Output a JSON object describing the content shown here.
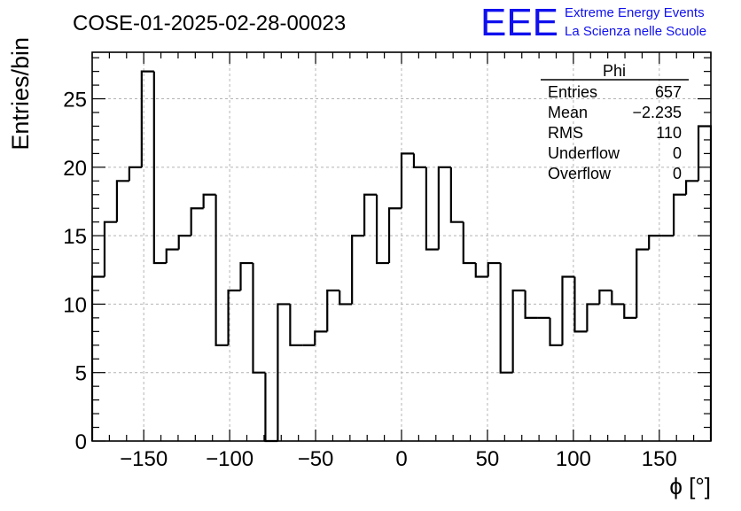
{
  "header": {
    "run_title": "COSE-01-2025-02-28-00023",
    "logo_text": "EEE",
    "logo_line1": "Extreme Energy Events",
    "logo_line2": "La Scienza nelle Scuole",
    "logo_color": "#1010ee"
  },
  "stats_box": {
    "title": "Phi",
    "rows": [
      {
        "label": "Entries",
        "value": "657"
      },
      {
        "label": "Mean",
        "value": "−2.235"
      },
      {
        "label": "RMS",
        "value": "110"
      },
      {
        "label": "Underflow",
        "value": "0"
      },
      {
        "label": "Overflow",
        "value": "0"
      }
    ]
  },
  "chart_data": {
    "type": "histogram",
    "title": "COSE-01-2025-02-28-00023",
    "xlabel": "ϕ [°]",
    "ylabel": "Entries/bin",
    "xlim": [
      -180,
      180
    ],
    "ylim": [
      0,
      28.4
    ],
    "grid": true,
    "bin_width": 7.2,
    "x_ticks": [
      -150,
      -100,
      -50,
      0,
      50,
      100,
      150
    ],
    "x_tick_labels": [
      "−150",
      "−100",
      "−50",
      "0",
      "50",
      "100",
      "150"
    ],
    "y_ticks": [
      0,
      5,
      10,
      15,
      20,
      25
    ],
    "y_tick_labels": [
      "0",
      "5",
      "10",
      "15",
      "20",
      "25"
    ],
    "values": [
      12,
      16,
      19,
      20,
      27,
      13,
      14,
      15,
      17,
      18,
      7,
      11,
      13,
      5,
      0,
      10,
      7,
      7,
      8,
      11,
      10,
      15,
      18,
      13,
      17,
      21,
      20,
      14,
      20,
      16,
      13,
      12,
      13,
      5,
      11,
      9,
      9,
      7,
      12,
      8,
      10,
      11,
      10,
      9,
      14,
      15,
      15,
      18,
      19,
      23
    ],
    "line_color": "#000000",
    "grid_color": "#b4b4b4"
  }
}
